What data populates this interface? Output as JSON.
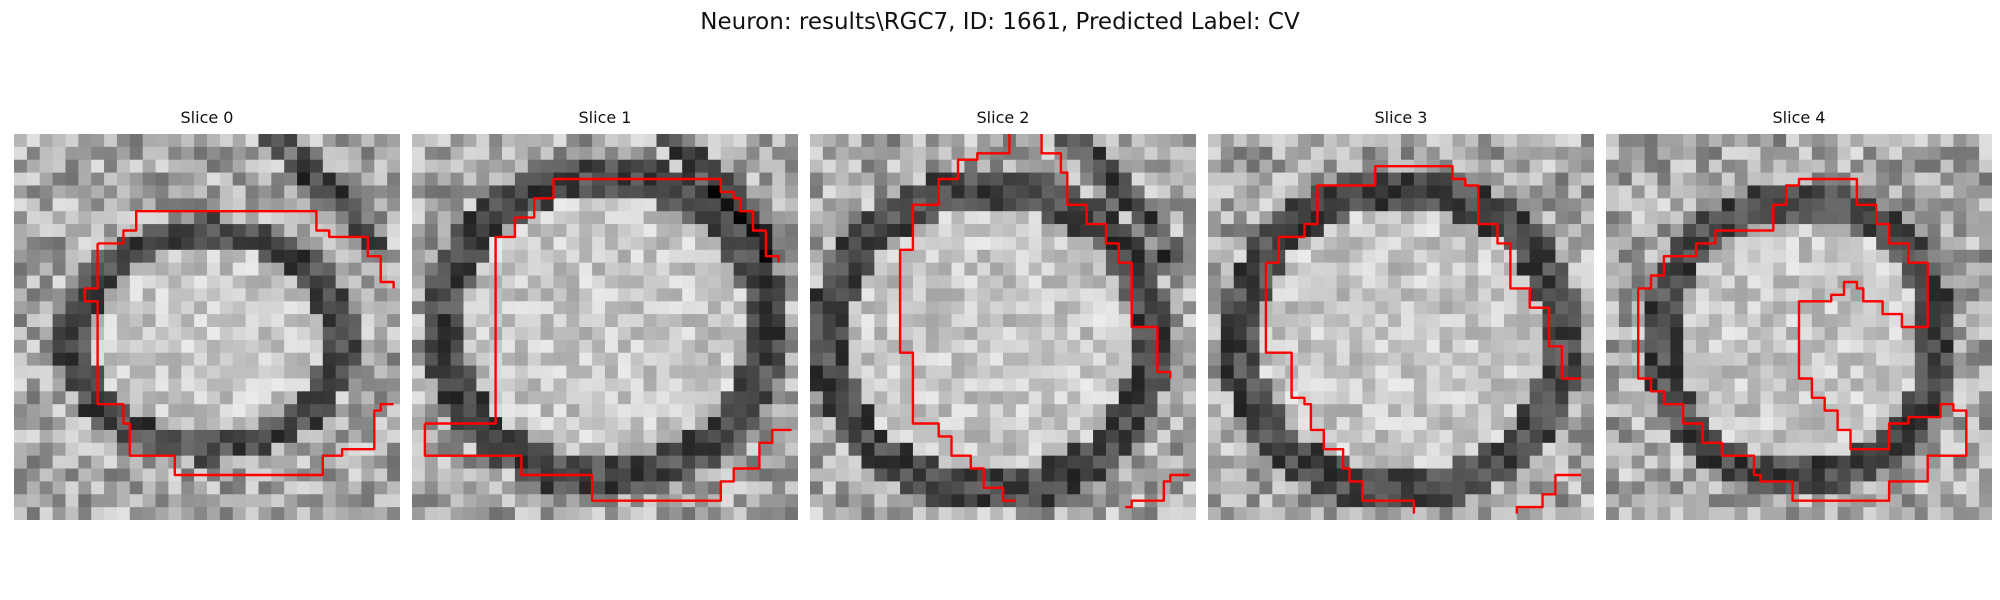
{
  "figure": {
    "title": "Neuron: results\\RGC7, ID: 1661, Predicted Label: CV",
    "contour_color": "#ff0000"
  },
  "panels": [
    {
      "title": "Slice 0"
    },
    {
      "title": "Slice 1"
    },
    {
      "title": "Slice 2"
    },
    {
      "title": "Slice 3"
    },
    {
      "title": "Slice 4"
    }
  ]
}
